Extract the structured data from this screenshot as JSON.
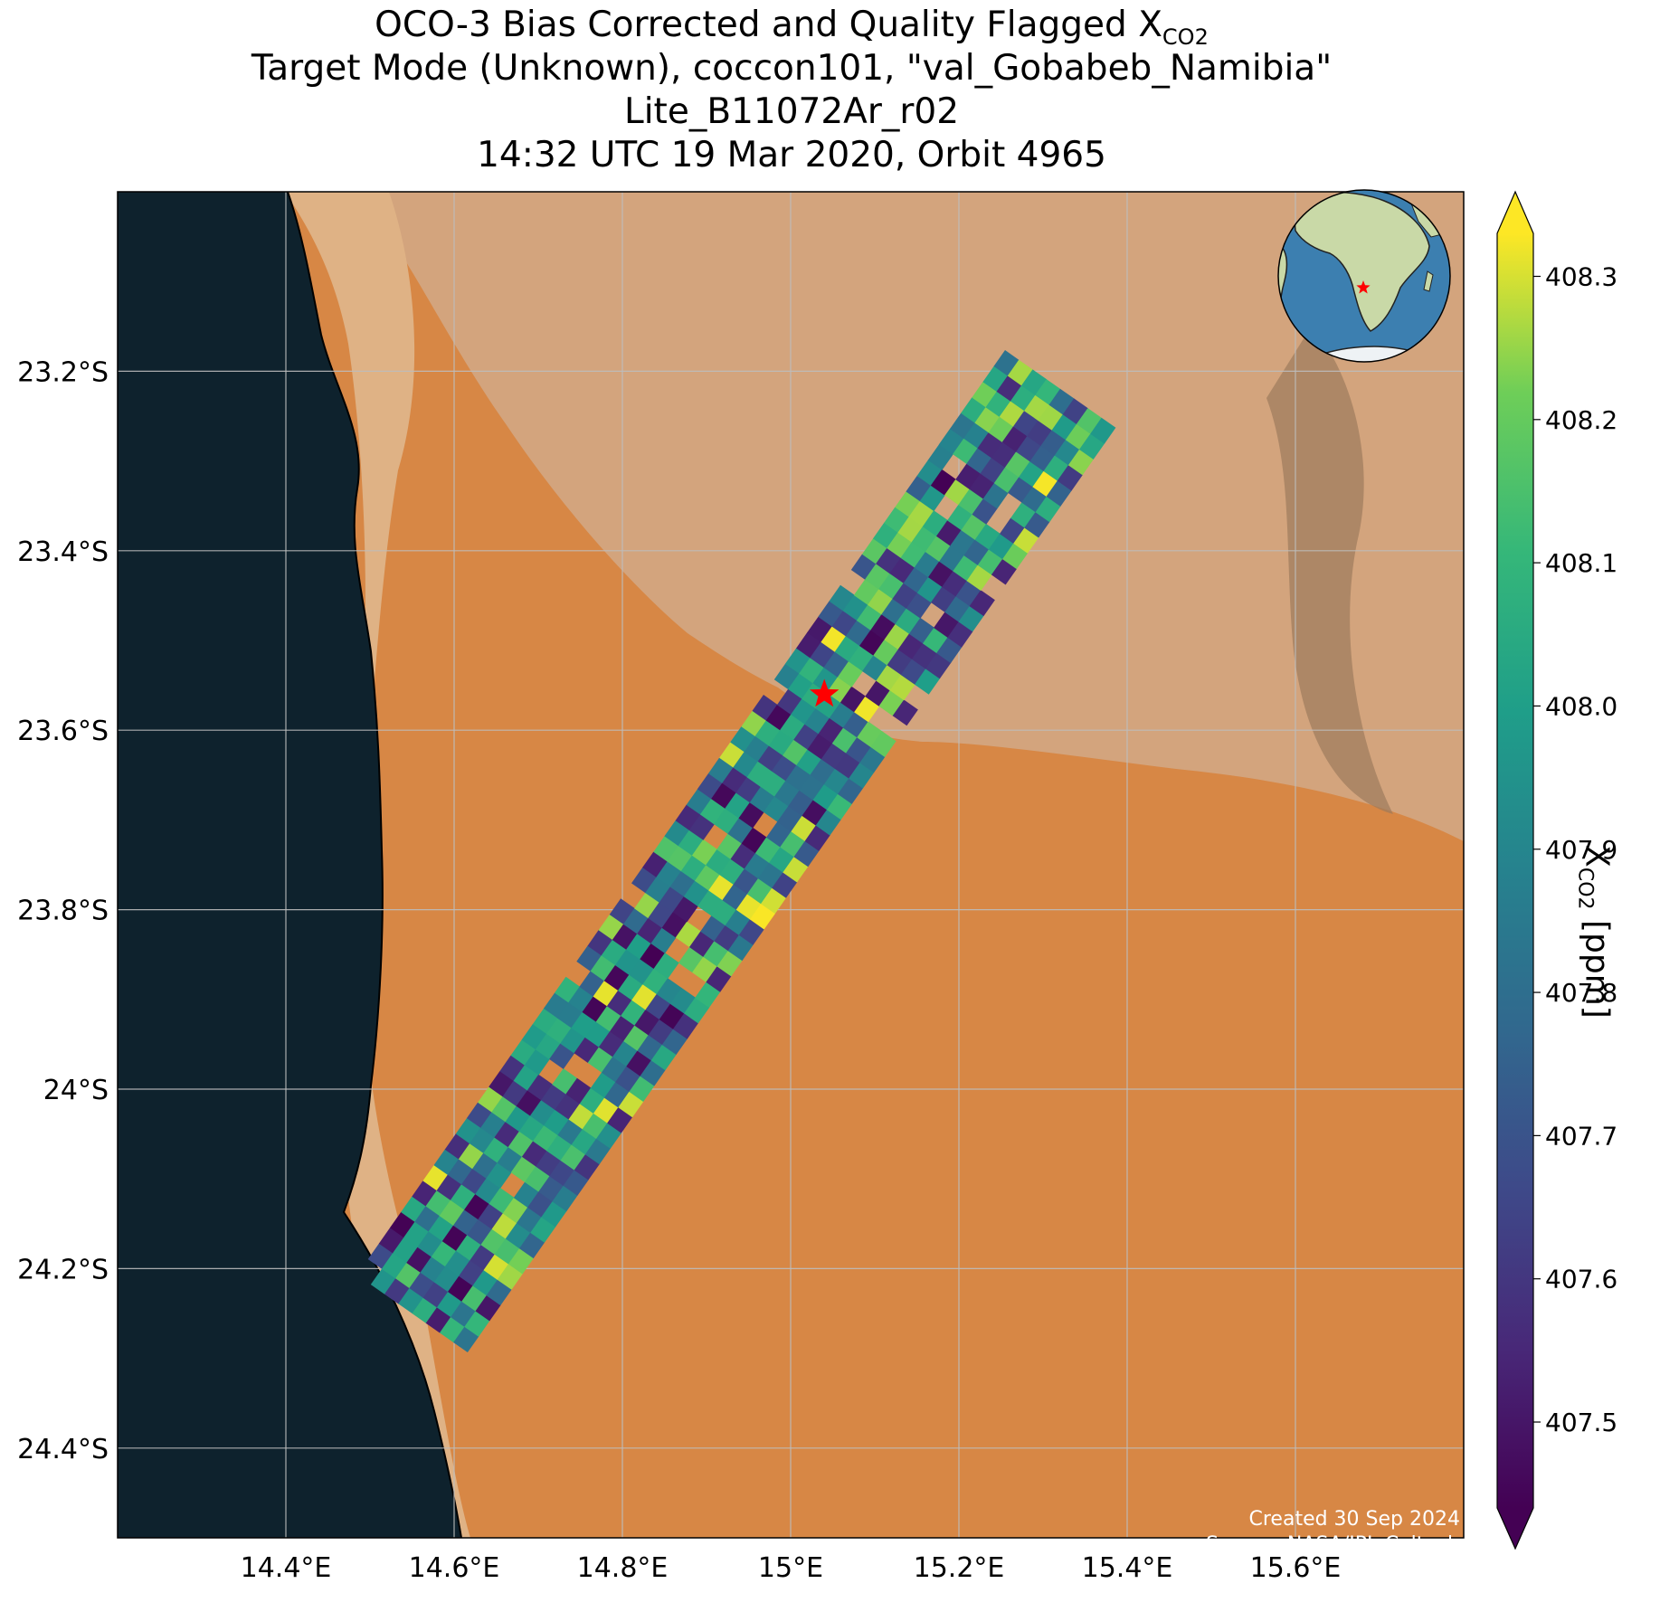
{
  "title": {
    "line1_main": "OCO-3 Bias Corrected and Quality Flagged X",
    "line1_sub": "CO2",
    "line2": "Target Mode (Unknown), coccon101, \"val_Gobabeb_Namibia\"",
    "line3": "Lite_B11072Ar_r02",
    "line4": "14:32 UTC 19 Mar 2020, Orbit 4965"
  },
  "credits": {
    "created": "Created 30 Sep 2024",
    "source": "Source: NASA/JPL-Caltech"
  },
  "colorbar": {
    "label_main": "X",
    "label_sub": "CO2",
    "label_unit": " [ppm]",
    "ticks": [
      "407.5",
      "407.6",
      "407.7",
      "407.8",
      "407.9",
      "408.0",
      "408.1",
      "408.2",
      "408.3"
    ],
    "vmin": 407.44,
    "vmax": 408.33,
    "colormap": "viridis",
    "extend": "both"
  },
  "chart_data": {
    "type": "heatmap",
    "title": "OCO-3 Bias Corrected and Quality Flagged XCO2",
    "xlabel": "",
    "ylabel": "",
    "xlim": [
      14.2,
      15.8
    ],
    "ylim": [
      -24.5,
      -23.0
    ],
    "x_tick_values": [
      14.4,
      14.6,
      14.8,
      15.0,
      15.2,
      15.4,
      15.6
    ],
    "x_tick_labels": [
      "14.4°E",
      "14.6°E",
      "14.8°E",
      "15°E",
      "15.2°E",
      "15.4°E",
      "15.6°E"
    ],
    "y_tick_values": [
      -23.2,
      -23.4,
      -23.6,
      -23.8,
      -24.0,
      -24.2,
      -24.4
    ],
    "y_tick_labels": [
      "23.2°S",
      "23.4°S",
      "23.6°S",
      "23.8°S",
      "24°S",
      "24.2°S",
      "24.4°S"
    ],
    "grid": true,
    "units": "ppm",
    "target_site": {
      "lon": 15.04,
      "lat": -23.56,
      "marker": "red star"
    },
    "swath": {
      "north_end": {
        "lon": 15.32,
        "lat": -23.22
      },
      "south_end": {
        "lon": 14.55,
        "lat": -24.25
      },
      "cross_track_width_deg": 0.16,
      "value_range": [
        407.44,
        408.33
      ]
    },
    "inset_globe": {
      "marker": "red star",
      "region": "southern Africa"
    }
  },
  "colors": {
    "ocean": "#0e222d",
    "coast_sand": "#dfb285",
    "plateau": "#d3a47d",
    "dune_orange": "#d78745",
    "target_star": "#ff0000",
    "colorbar_low": "#440154",
    "colorbar_high": "#fde725"
  }
}
